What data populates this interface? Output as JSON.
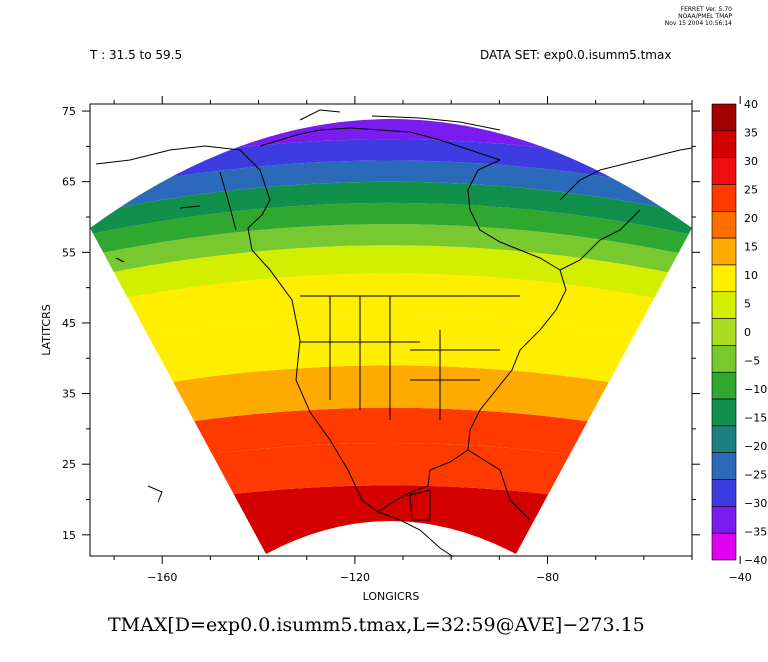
{
  "stamp": {
    "line1": "FERRET Ver. 5.70",
    "line2": "NOAA/PMEL TMAP",
    "line3": "Nov 15 2004 10:56:14"
  },
  "header": {
    "time_range": "T : 31.5 to 59.5",
    "dataset": "DATA SET: exp0.0.isumm5.tmax"
  },
  "footer": {
    "expression": "TMAX[D=exp0.0.isumm5.tmax,L=32:59@AVE]−273.15"
  },
  "chart_data": {
    "type": "heatmap",
    "title": "TMAX[D=exp0.0.isumm5.tmax,L=32:59@AVE]−273.15",
    "xlabel": "LONGICRS",
    "ylabel": "LATITCRS",
    "xlim": [
      -175,
      -50
    ],
    "ylim": [
      12,
      76
    ],
    "x_ticks": [
      -160,
      -120,
      -80,
      -40
    ],
    "x_tick_labels": [
      "−160",
      "−120",
      "−80",
      "−40"
    ],
    "y_ticks": [
      75,
      65,
      55,
      45,
      35,
      25,
      15
    ],
    "y_tick_labels": [
      "75",
      "65",
      "55",
      "45",
      "35",
      "25",
      "15"
    ],
    "colorbar": {
      "levels": [
        40,
        35,
        30,
        25,
        20,
        15,
        10,
        5,
        0,
        -5,
        -10,
        -15,
        -20,
        -25,
        -30,
        -35,
        -40
      ],
      "labels": [
        "40",
        "35",
        "30",
        "25",
        "20",
        "15",
        "10",
        "5",
        "0",
        "−5",
        "−10",
        "−15",
        "−20",
        "−25",
        "−30",
        "−35",
        "−40"
      ],
      "colors": [
        "#a00000",
        "#d40000",
        "#f01010",
        "#ff3a00",
        "#ff6e00",
        "#ffaa00",
        "#ffee00",
        "#d4ee00",
        "#a8dc20",
        "#78c830",
        "#30a830",
        "#10904a",
        "#208080",
        "#2a6ab8",
        "#3c3ce0",
        "#7a1cf0",
        "#e000f0"
      ]
    },
    "field_bands": [
      {
        "lat": [
          12,
          22
        ],
        "value": 32
      },
      {
        "lat": [
          22,
          28
        ],
        "value": 25
      },
      {
        "lat": [
          28,
          33
        ],
        "value": 21
      },
      {
        "lat": [
          33,
          39
        ],
        "value": 15
      },
      {
        "lat": [
          39,
          46
        ],
        "value": 10
      },
      {
        "lat": [
          46,
          52
        ],
        "value": 6
      },
      {
        "lat": [
          52,
          56
        ],
        "value": 1
      },
      {
        "lat": [
          56,
          59
        ],
        "value": -5
      },
      {
        "lat": [
          59,
          62
        ],
        "value": -12
      },
      {
        "lat": [
          62,
          65
        ],
        "value": -19
      },
      {
        "lat": [
          65,
          68
        ],
        "value": -26
      },
      {
        "lat": [
          68,
          71
        ],
        "value": -31
      },
      {
        "lat": [
          71,
          76
        ],
        "value": -38
      }
    ],
    "grid": false,
    "legend": "right colorbar"
  }
}
